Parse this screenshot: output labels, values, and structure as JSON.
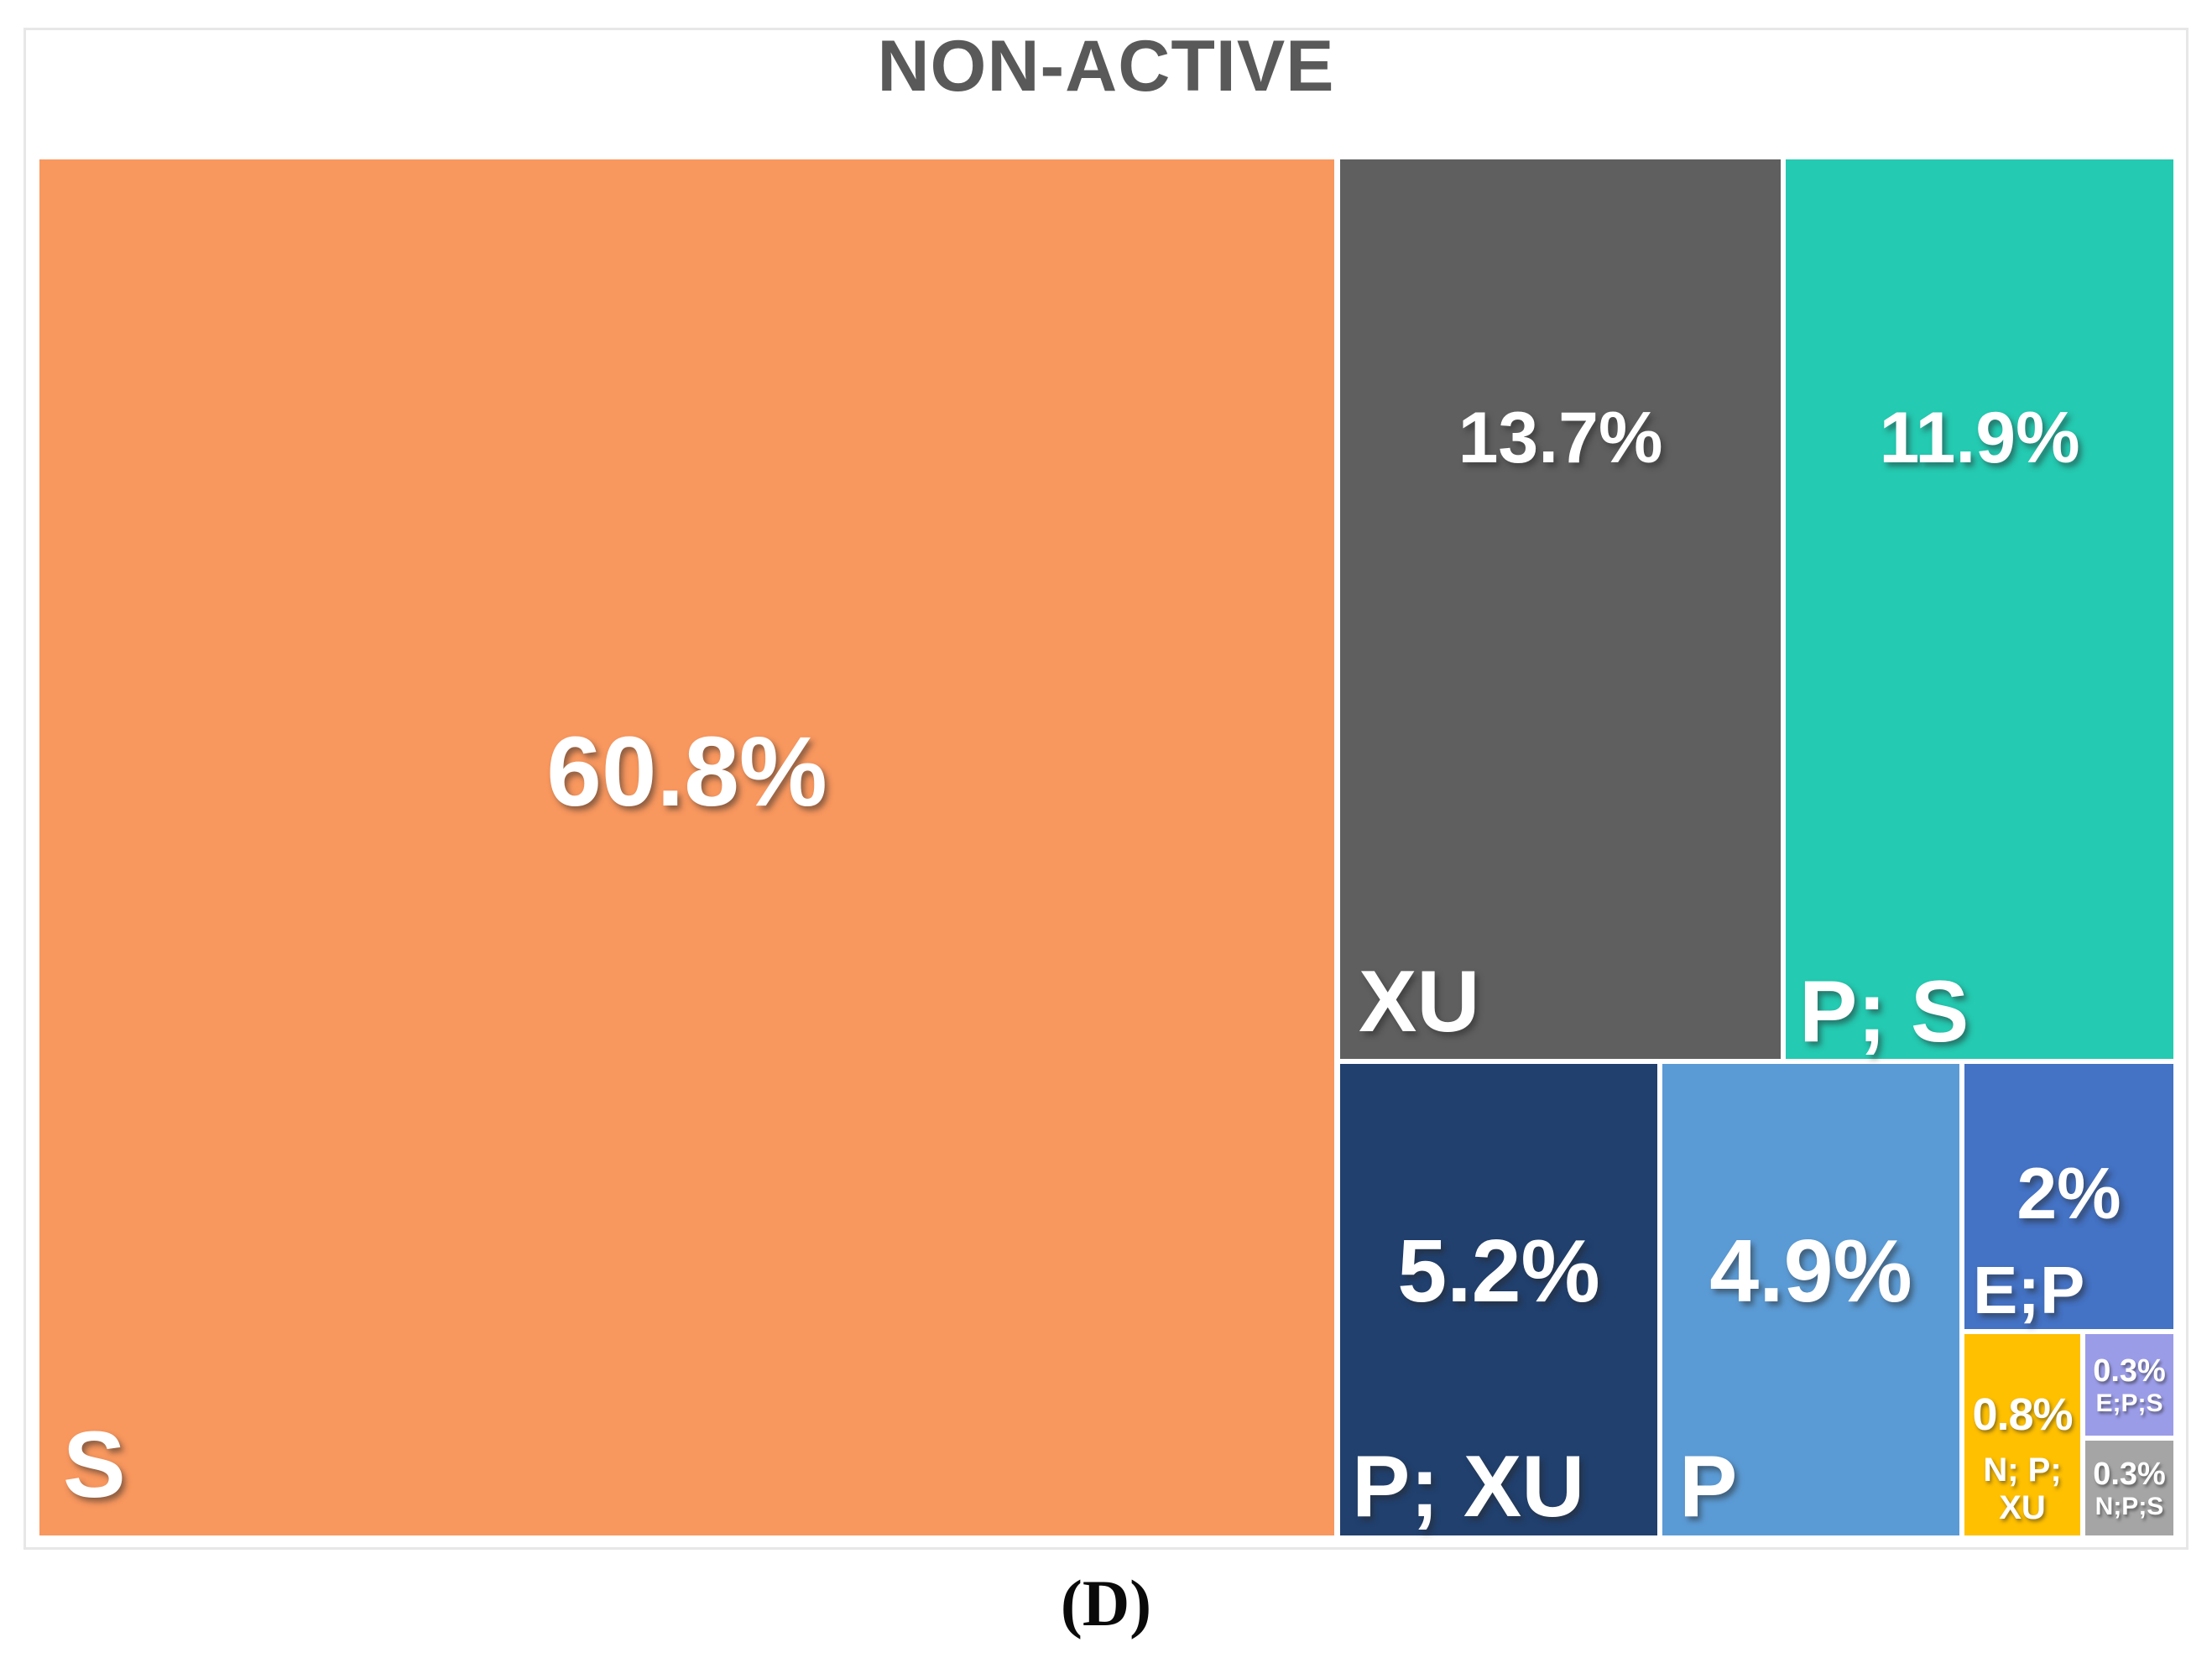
{
  "figure": {
    "title": "NON-ACTIVE",
    "caption": "(D)"
  },
  "colors": {
    "background": "#FFFFFF",
    "frame_border": "#E7E7E7",
    "title_text": "#595959",
    "tile_text": "#FFFFFF",
    "caption_text": "#0A0A0A"
  },
  "chart_data": {
    "type": "treemap",
    "title": "NON-ACTIVE",
    "unit": "percent",
    "total_shown": 99.9,
    "legend": "none",
    "segments": [
      {
        "label": "S",
        "value": 60.8,
        "value_label": "60.8%",
        "color": "#F8975E"
      },
      {
        "label": "XU",
        "value": 13.7,
        "value_label": "13.7%",
        "color": "#5F5F5F"
      },
      {
        "label": "P; S",
        "value": 11.9,
        "value_label": "11.9%",
        "color": "#24CAB1"
      },
      {
        "label": "P; XU",
        "value": 5.2,
        "value_label": "5.2%",
        "color": "#21406E"
      },
      {
        "label": "P",
        "value": 4.9,
        "value_label": "4.9%",
        "color": "#5B9BD5"
      },
      {
        "label": "E;P",
        "value": 2,
        "value_label": "2%",
        "color": "#4472C4"
      },
      {
        "label": "N; P;\nXU",
        "value": 0.8,
        "value_label": "0.8%",
        "color": "#FFC000"
      },
      {
        "label": "E;P;S",
        "value": 0.3,
        "value_label": "0.3%",
        "color": "#9B9CE8"
      },
      {
        "label": "N;P;S",
        "value": 0.3,
        "value_label": "0.3%",
        "color": "#A5A5A5"
      }
    ],
    "layout_hint": "Large 'S' tile fills left ~61% of plot at full height; 'XU' and 'P; S' occupy the upper right; bottom-right row holds 'P; XU', 'P', then a column with 'E;P' above 'N; P; XU' (yellow) beside stacked 'E;P;S' and 'N;P;S' micro-tiles; white 6px gutters between tiles"
  }
}
